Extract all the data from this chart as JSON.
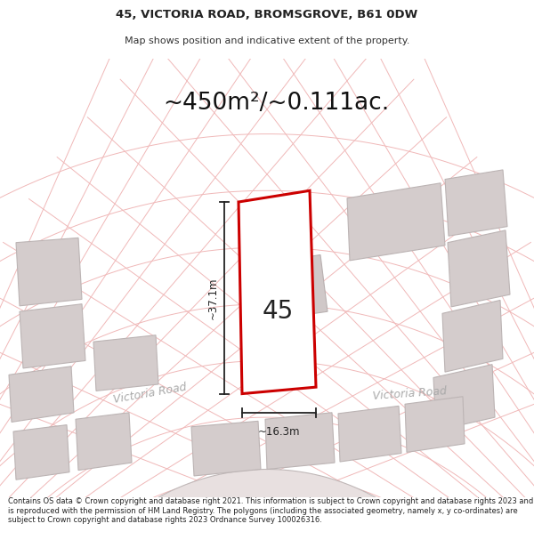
{
  "title_line1": "45, VICTORIA ROAD, BROMSGROVE, B61 0DW",
  "title_line2": "Map shows position and indicative extent of the property.",
  "area_text": "~450m²/~0.111ac.",
  "label_45": "45",
  "dim_height": "~37.1m",
  "dim_width": "~16.3m",
  "road_label_left": "Victoria Road",
  "road_label_right": "Victoria Road",
  "footer_text": "Contains OS data © Crown copyright and database right 2021. This information is subject to Crown copyright and database rights 2023 and is reproduced with the permission of HM Land Registry. The polygons (including the associated geometry, namely x, y co-ordinates) are subject to Crown copyright and database rights 2023 Ordnance Survey 100026316.",
  "bg_color": "#ffffff",
  "map_bg": "#f7f2f2",
  "plot_color": "#cc0000",
  "plot_fill": "#ffffff",
  "road_fill": "#e8e0e0",
  "road_edge": "#c0b8b8",
  "line_color": "#f0b8b8",
  "building_fill": "#d4cccc",
  "building_edge": "#bcb4b4",
  "dim_line_color": "#222222",
  "road_label_color": "#aaaaaa"
}
